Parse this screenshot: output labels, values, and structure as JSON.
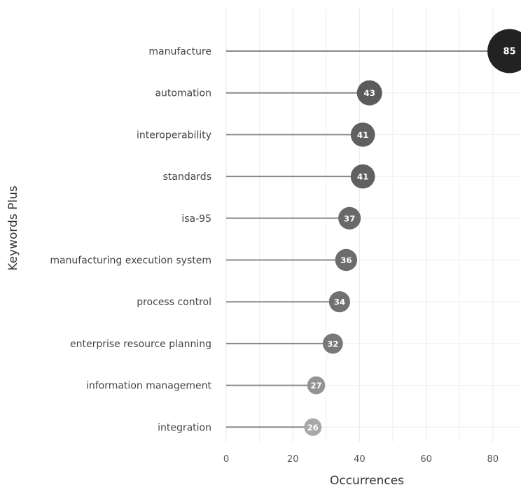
{
  "chart_data": {
    "type": "scatter",
    "subtype": "lollipop",
    "title": "",
    "xlabel": "Occurrences",
    "ylabel": "Keywords Plus",
    "xlim": [
      0,
      85
    ],
    "xticks": [
      "0",
      "20",
      "40",
      "60",
      "80"
    ],
    "grid": true,
    "categories": [
      "manufacture",
      "automation",
      "interoperability",
      "standards",
      "isa-95",
      "manufacturing execution system",
      "process control",
      "enterprise resource planning",
      "information management",
      "integration"
    ],
    "values": [
      85,
      43,
      41,
      41,
      37,
      36,
      34,
      32,
      27,
      26
    ],
    "data_labels": [
      "85",
      "43",
      "41",
      "41",
      "37",
      "36",
      "34",
      "32",
      "27",
      "26"
    ]
  },
  "colors": {
    "background": "#ffffff",
    "gridline": "#ececec",
    "stem": "#888888",
    "bubble_dark": "#222222",
    "bubble_light": "#a8a8a8"
  }
}
